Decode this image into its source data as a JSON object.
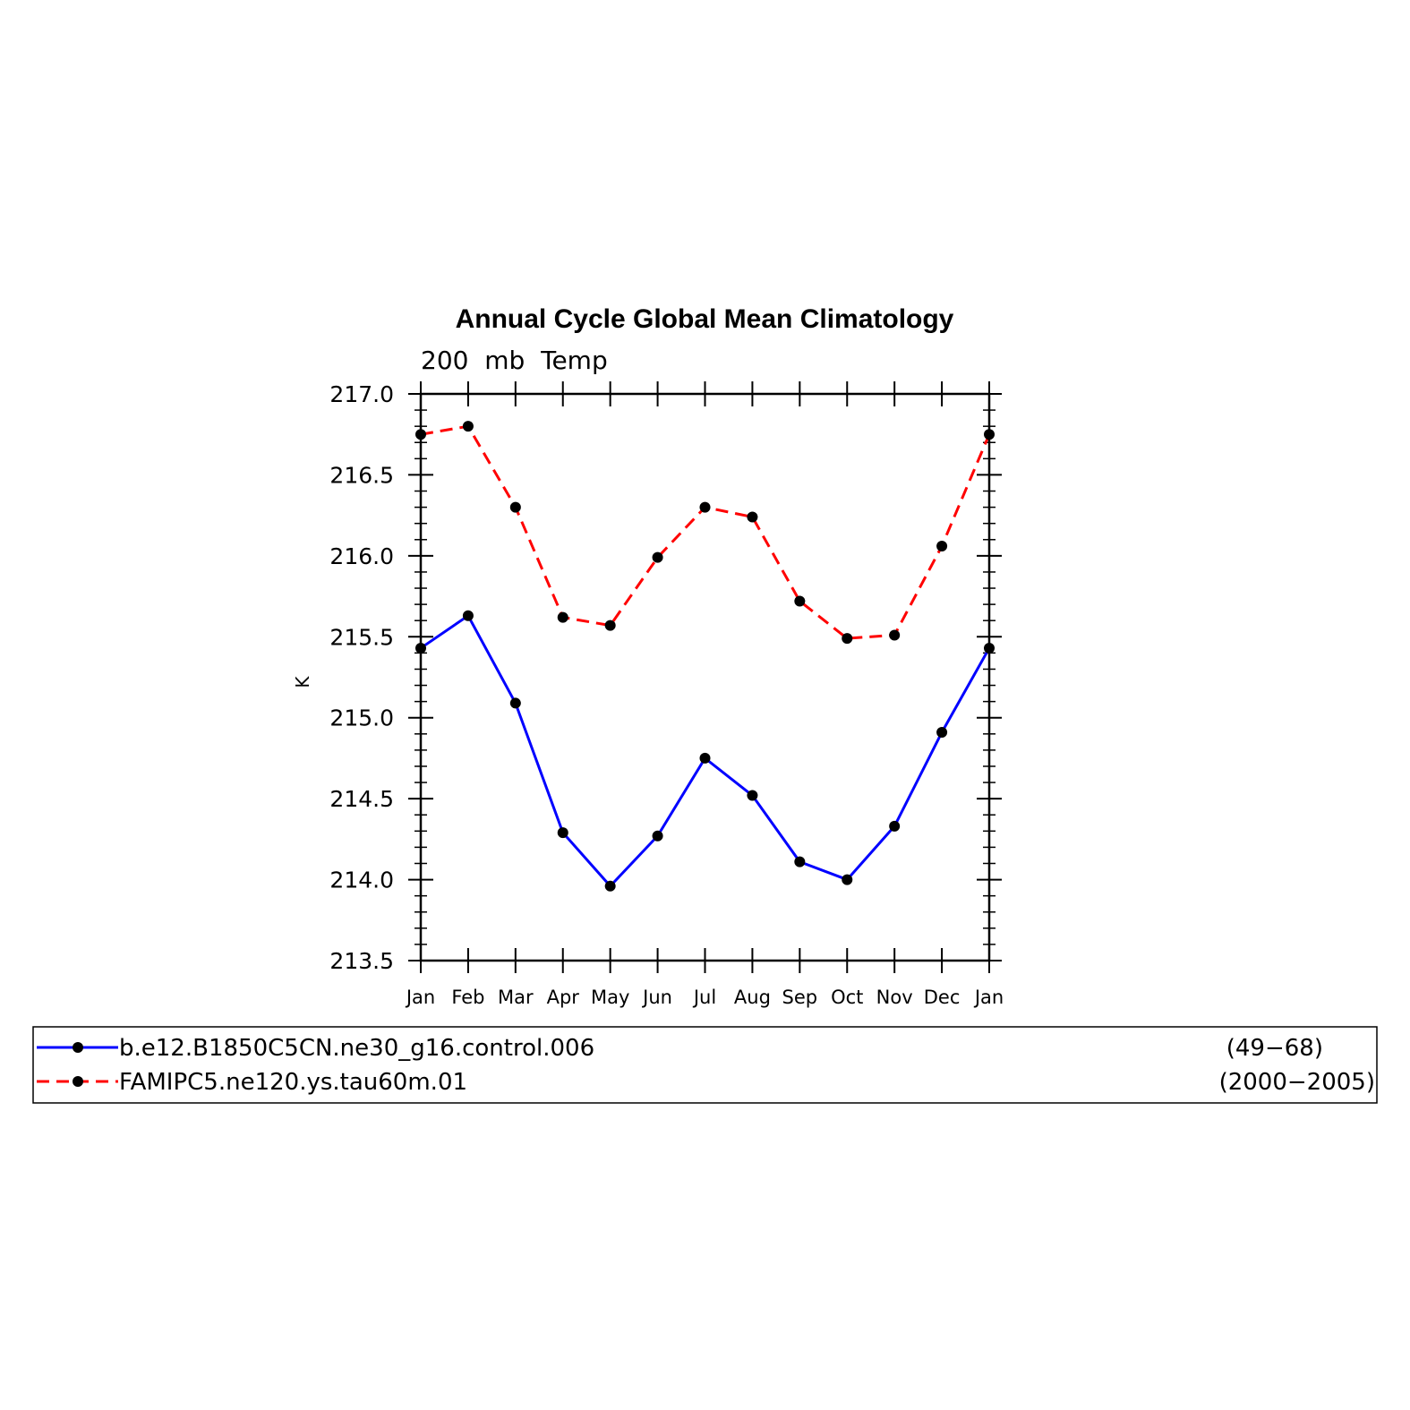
{
  "chart_data": {
    "type": "line",
    "title": "Annual Cycle Global Mean Climatology",
    "subtitle": "200  mb  Temp",
    "xlabel": "",
    "ylabel": "K",
    "categories": [
      "Jan",
      "Feb",
      "Mar",
      "Apr",
      "May",
      "Jun",
      "Jul",
      "Aug",
      "Sep",
      "Oct",
      "Nov",
      "Dec",
      "Jan"
    ],
    "ylim": [
      213.5,
      217.0
    ],
    "yticks": [
      "217.0",
      "216.5",
      "216.0",
      "215.5",
      "215.0",
      "214.5",
      "214.0",
      "213.5"
    ],
    "grid": false,
    "legend_position": "bottom",
    "series": [
      {
        "name": "b.e12.B1850C5CN.ne30_g16.control.006",
        "years": "(49−68)",
        "color": "#0000ff",
        "dash": "solid",
        "values": [
          215.43,
          215.63,
          215.09,
          214.29,
          213.96,
          214.27,
          214.75,
          214.52,
          214.11,
          214.0,
          214.33,
          214.91,
          215.43
        ]
      },
      {
        "name": "FAMIPC5.ne120.ys.tau60m.01",
        "years": "(2000−2005)",
        "color": "#ff0000",
        "dash": "dashed",
        "values": [
          216.75,
          216.8,
          216.3,
          215.62,
          215.57,
          215.99,
          216.3,
          216.24,
          215.72,
          215.49,
          215.51,
          216.06,
          216.75
        ]
      }
    ]
  }
}
